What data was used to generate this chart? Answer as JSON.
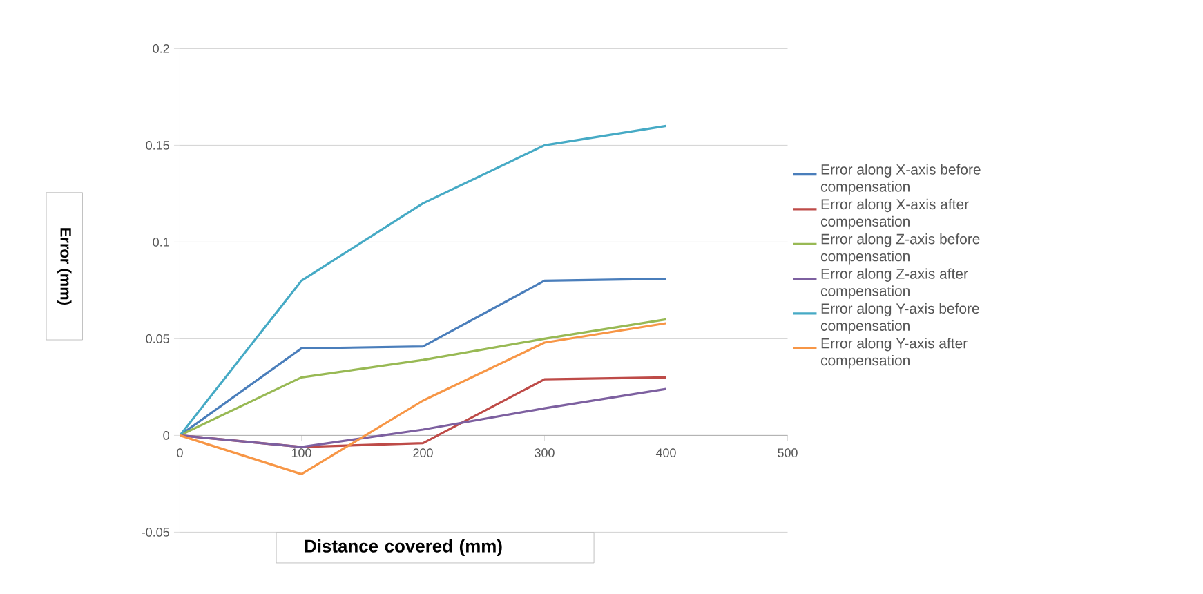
{
  "chart_data": {
    "type": "line",
    "xlabel": "Distance covered  (mm)",
    "ylabel": "Error (mm)",
    "x": [
      0,
      100,
      200,
      300,
      400
    ],
    "series": [
      {
        "name": "Error along X-axis before compensation",
        "color": "#4a7ebb",
        "values": [
          0,
          0.045,
          0.046,
          0.08,
          0.081
        ]
      },
      {
        "name": "Error along X-axis after compensation",
        "color": "#be4b48",
        "values": [
          0,
          -0.006,
          -0.004,
          0.029,
          0.03
        ]
      },
      {
        "name": "Error along Z-axis before compensation",
        "color": "#98b954",
        "values": [
          0,
          0.03,
          0.039,
          0.05,
          0.06
        ]
      },
      {
        "name": "Error along Z-axis after compensation",
        "color": "#7d60a0",
        "values": [
          0,
          -0.006,
          0.003,
          0.014,
          0.024
        ]
      },
      {
        "name": "Error along Y-axis before compensation",
        "color": "#46aac5",
        "values": [
          0,
          0.08,
          0.12,
          0.15,
          0.16
        ]
      },
      {
        "name": "Error along Y-axis after compensation",
        "color": "#f79646",
        "values": [
          0,
          -0.02,
          0.018,
          0.048,
          0.058
        ]
      }
    ],
    "xlim": [
      0,
      500
    ],
    "xticks": [
      0,
      100,
      200,
      300,
      400,
      500
    ],
    "ylim": [
      -0.05,
      0.2
    ],
    "yticks": [
      -0.05,
      0,
      0.05,
      0.1,
      0.15,
      0.2
    ],
    "grid": "y",
    "legend": "right",
    "marker": "none",
    "line_style": "solid"
  }
}
